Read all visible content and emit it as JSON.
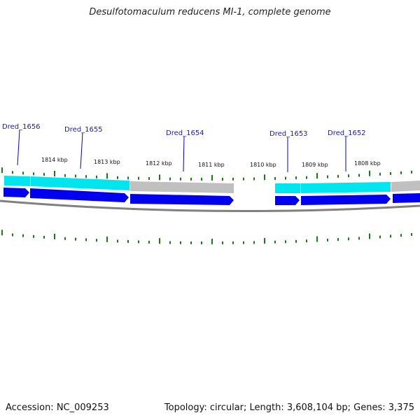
{
  "title": "Desulfotomaculum reducens MI-1, complete genome",
  "footer": {
    "accession": "Accession: NC_009253",
    "summary": "Topology: circular; Length: 3,608,104 bp; Genes: 3,375"
  },
  "colors": {
    "cds": "#0000ee",
    "gene_match": "#00e5ee",
    "gene_other": "#c0c0c0",
    "tick": "#1a7a1a",
    "backbone": "#808080",
    "label_line": "#0000cc"
  },
  "kbp_labels": [
    "1814 kbp",
    "1813 kbp",
    "1812 kbp",
    "1811 kbp",
    "1810 kbp",
    "1809 kbp",
    "1808 kbp"
  ],
  "gene_labels": [
    "Dred_1656",
    "Dred_1655",
    "Dred_1654",
    "Dred_1653",
    "Dred_1652"
  ]
}
